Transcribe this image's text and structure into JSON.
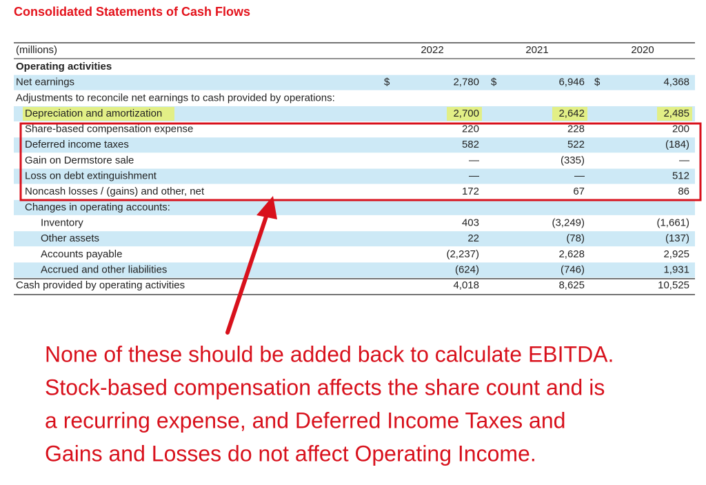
{
  "title": "Consolidated Statements of Cash Flows",
  "table": {
    "header": [
      "(millions)",
      "2022",
      "2021",
      "2020"
    ],
    "rows": [
      {
        "label": "Operating activities"
      },
      {
        "label": "Net earnings",
        "dollar": [
          "$",
          "$",
          "$"
        ],
        "values": [
          "2,780",
          "6,946",
          "4,368"
        ]
      },
      {
        "label": "Adjustments to reconcile net earnings to cash provided by operations:"
      },
      {
        "label": "Depreciation and amortization",
        "values": [
          "2,700",
          "2,642",
          "2,485"
        ]
      },
      {
        "label": "Share-based compensation expense",
        "values": [
          "220",
          "228",
          "200"
        ]
      },
      {
        "label": "Deferred income taxes",
        "values": [
          "582",
          "522",
          "(184)"
        ]
      },
      {
        "label": "Gain on Dermstore sale",
        "values": [
          "—",
          "(335)",
          "—"
        ]
      },
      {
        "label": "Loss on debt extinguishment",
        "values": [
          "—",
          "—",
          "512"
        ]
      },
      {
        "label": "Noncash losses / (gains) and other, net",
        "values": [
          "172",
          "67",
          "86"
        ]
      },
      {
        "label": "Changes in operating accounts:"
      },
      {
        "label": "Inventory",
        "values": [
          "403",
          "(3,249)",
          "(1,661)"
        ]
      },
      {
        "label": "Other assets",
        "values": [
          "22",
          "(78)",
          "(137)"
        ]
      },
      {
        "label": "Accounts payable",
        "values": [
          "(2,237)",
          "2,628",
          "2,925"
        ]
      },
      {
        "label": "Accrued and other liabilities",
        "values": [
          "(624)",
          "(746)",
          "1,931"
        ]
      },
      {
        "label": "Cash provided by operating activities",
        "values": [
          "4,018",
          "8,625",
          "10,525"
        ]
      }
    ]
  },
  "annotation": [
    "None of these should be added back to calculate EBITDA.",
    "Stock-based compensation affects the share count and is",
    "a recurring expense, and Deferred Income Taxes and",
    "Gains and Losses do not affect Operating Income."
  ]
}
